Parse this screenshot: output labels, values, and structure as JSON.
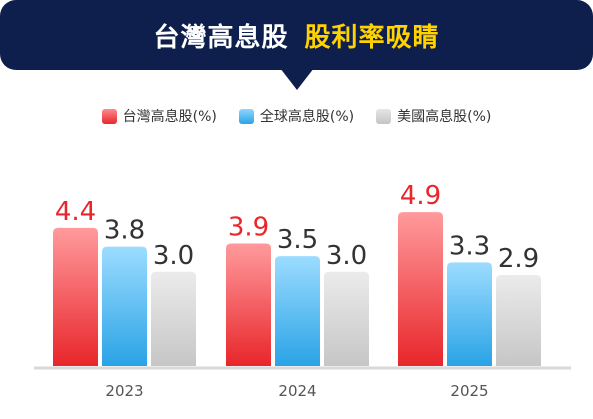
{
  "header": {
    "title": "台灣高息股",
    "highlight": "股利率吸睛"
  },
  "colors": {
    "banner": "#0f1f4d",
    "highlight": "#ffd200",
    "taiwan": "#e8262b",
    "global": "#2aa3e6",
    "us": "#cccccc"
  },
  "chart_data": {
    "type": "bar",
    "categories": [
      "2023",
      "2024",
      "2025"
    ],
    "series": [
      {
        "name": "台灣高息股(%)",
        "values": [
          4.4,
          3.9,
          4.9
        ],
        "color_key": "taiwan"
      },
      {
        "name": "全球高息股(%)",
        "values": [
          3.8,
          3.5,
          3.3
        ],
        "color_key": "global"
      },
      {
        "name": "美國高息股(%)",
        "values": [
          3.0,
          3.0,
          2.9
        ],
        "color_key": "us"
      }
    ],
    "data_labels": [
      [
        "4.4",
        "3.8",
        "3.0"
      ],
      [
        "3.9",
        "3.5",
        "3.0"
      ],
      [
        "4.9",
        "3.3",
        "2.9"
      ]
    ],
    "legend_position": "top-center",
    "grid": false,
    "ylim": [
      0,
      5
    ]
  }
}
